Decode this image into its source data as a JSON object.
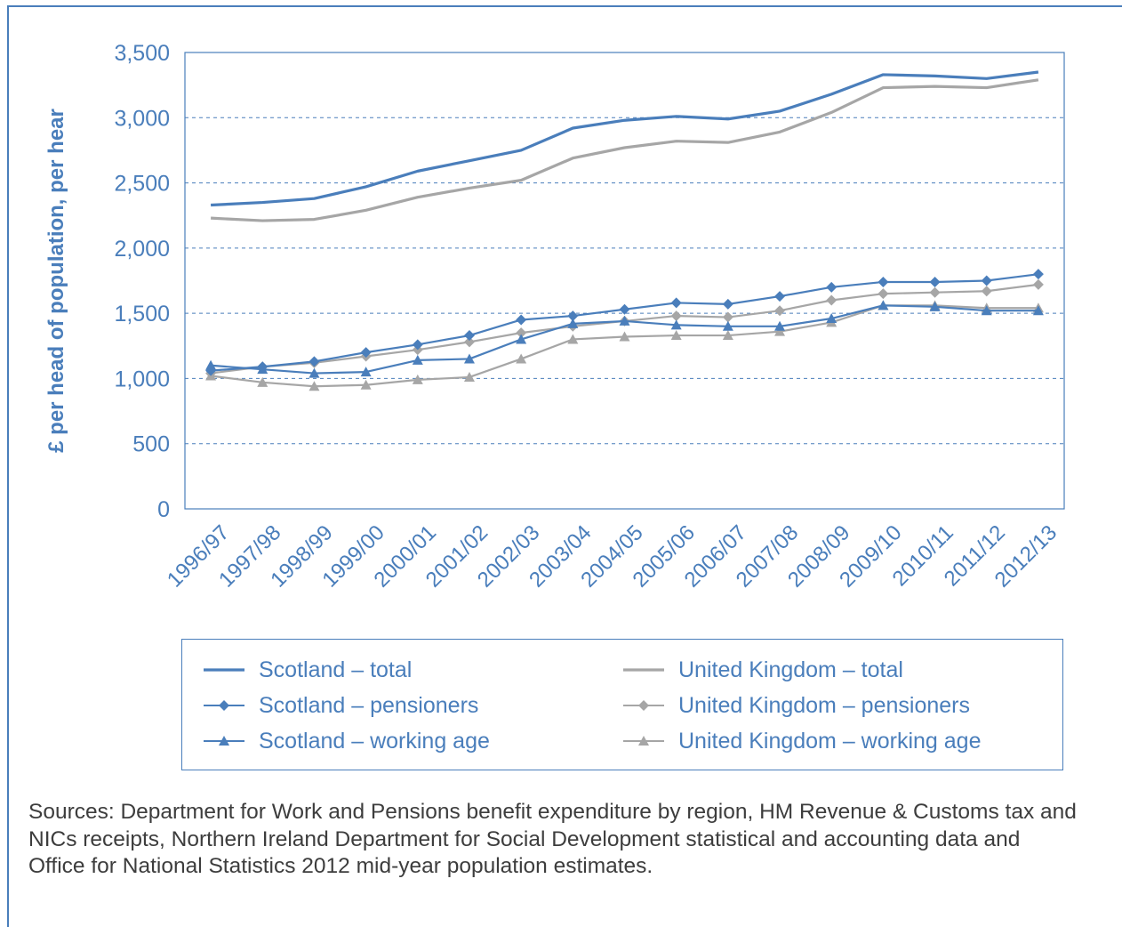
{
  "chart_data": {
    "type": "line",
    "ylabel": "£ per head of population, per hear",
    "xlabel": "",
    "ylim": [
      0,
      3500
    ],
    "yticks": [
      0,
      500,
      1000,
      1500,
      2000,
      2500,
      3000,
      3500
    ],
    "ytick_labels": [
      "0",
      "500",
      "1,000",
      "1,500",
      "2,000",
      "2,500",
      "3,000",
      "3,500"
    ],
    "categories": [
      "1996/97",
      "1997/98",
      "1998/99",
      "1999/00",
      "2000/01",
      "2001/02",
      "2002/03",
      "2003/04",
      "2004/05",
      "2005/06",
      "2006/07",
      "2007/08",
      "2008/09",
      "2009/10",
      "2010/11",
      "2011/12",
      "2012/13"
    ],
    "grid": "horizontal dashed",
    "legend_position": "bottom",
    "series": [
      {
        "name": "Scotland – total",
        "color": "#4a7ebb",
        "marker": "none",
        "values": [
          2330,
          2350,
          2380,
          2470,
          2590,
          2670,
          2750,
          2920,
          2980,
          3010,
          2990,
          3050,
          3180,
          3330,
          3320,
          3300,
          3350
        ]
      },
      {
        "name": "Scotland – pensioners",
        "color": "#4a7ebb",
        "marker": "diamond",
        "values": [
          1060,
          1090,
          1130,
          1200,
          1260,
          1330,
          1450,
          1480,
          1530,
          1580,
          1570,
          1630,
          1700,
          1740,
          1740,
          1750,
          1800
        ]
      },
      {
        "name": "Scotland – working age",
        "color": "#4a7ebb",
        "marker": "triangle",
        "values": [
          1100,
          1070,
          1040,
          1050,
          1140,
          1150,
          1300,
          1420,
          1440,
          1410,
          1400,
          1400,
          1460,
          1560,
          1550,
          1520,
          1520
        ]
      },
      {
        "name": "United Kingdom – total",
        "color": "#a6a6a6",
        "marker": "none",
        "values": [
          2230,
          2210,
          2220,
          2290,
          2390,
          2460,
          2520,
          2690,
          2770,
          2820,
          2810,
          2890,
          3040,
          3230,
          3240,
          3230,
          3290
        ]
      },
      {
        "name": "United Kingdom – pensioners",
        "color": "#a6a6a6",
        "marker": "diamond",
        "values": [
          1040,
          1090,
          1120,
          1170,
          1220,
          1280,
          1350,
          1400,
          1440,
          1480,
          1470,
          1520,
          1600,
          1650,
          1660,
          1670,
          1720
        ]
      },
      {
        "name": "United Kingdom – working age",
        "color": "#a6a6a6",
        "marker": "triangle",
        "values": [
          1020,
          970,
          940,
          950,
          990,
          1010,
          1150,
          1300,
          1320,
          1330,
          1330,
          1360,
          1430,
          1560,
          1560,
          1540,
          1540
        ]
      }
    ]
  },
  "sources": "Sources: Department for Work and Pensions benefit expenditure by region, HM Revenue & Customs tax and NICs receipts, Northern Ireland Department for Social Development statistical and accounting data and Office for National Statistics 2012 mid-year population estimates."
}
